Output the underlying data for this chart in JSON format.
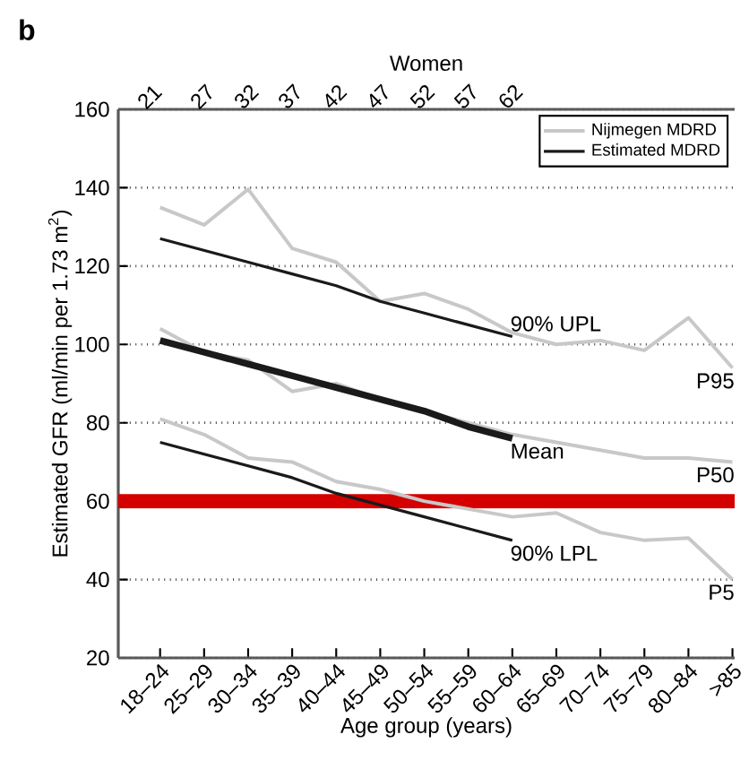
{
  "chart_data": {
    "type": "line",
    "xlabel": "Age group (years)",
    "ylabel": "Estimated GFR (ml/min per 1.73 m$^{2}$)",
    "x2label": "Women",
    "categories": [
      "18–24",
      "25–29",
      "30–34",
      "35–39",
      "40–44",
      "45–49",
      "50–54",
      "55–59",
      "60–64",
      "65–69",
      "70–74",
      "75–79",
      "80–84",
      ">85"
    ],
    "x2lim": [
      17.25,
      87.25
    ],
    "x2ticks": [
      21,
      27,
      32,
      37,
      42,
      47,
      52,
      57,
      62
    ],
    "ylim": [
      20,
      160
    ],
    "yticks": [
      20,
      40,
      60,
      80,
      100,
      120,
      140,
      160
    ],
    "grid": "y",
    "legend": "top right",
    "series": [
      {
        "name": "Nijmegen MDRD",
        "color": "#c8c8c8",
        "values": [
          135,
          130.5,
          139.6,
          124.5,
          121,
          111,
          113,
          109,
          103,
          100,
          101,
          98.5,
          106.8,
          94
        ]
      },
      {
        "color": "#c8c8c8",
        "values": [
          104,
          98,
          96,
          88,
          90,
          86,
          83,
          80,
          77,
          75,
          73,
          71,
          71,
          70
        ]
      },
      {
        "color": "#c8c8c8",
        "values": [
          81,
          77,
          71,
          70,
          65,
          63,
          60,
          58,
          56,
          57,
          52,
          50,
          50.6,
          40
        ]
      },
      {
        "name": "Estimated MDRD",
        "color": "#1a1a1a",
        "values": [
          127,
          124,
          121,
          118,
          115,
          111,
          108,
          105,
          102,
          null,
          null,
          null,
          null,
          null
        ]
      },
      {
        "color": "#1a1a1a",
        "values": [
          101,
          98,
          95,
          92,
          89,
          86,
          83,
          79,
          76,
          null,
          null,
          null,
          null,
          null
        ]
      },
      {
        "color": "#1a1a1a",
        "values": [
          75,
          72,
          69,
          66,
          62,
          59,
          56,
          53,
          50,
          null,
          null,
          null,
          null,
          null
        ]
      }
    ],
    "ref_lines": [
      {
        "axis": "y",
        "value": 60,
        "color": "#d40000"
      }
    ],
    "annotations": [
      "b",
      {
        "text": "90% UPL",
        "x": "60–64",
        "y": 102
      },
      {
        "text": "Mean",
        "x": "60–64",
        "y": 76
      },
      {
        "text": "90% LPL",
        "x": "60–64",
        "y": 50
      },
      {
        "text": "P95",
        "x": ">85",
        "y": 94
      },
      {
        "text": "P50",
        "x": ">85",
        "y": 70
      },
      {
        "text": "P5",
        "x": ">85",
        "y": 40
      }
    ]
  }
}
